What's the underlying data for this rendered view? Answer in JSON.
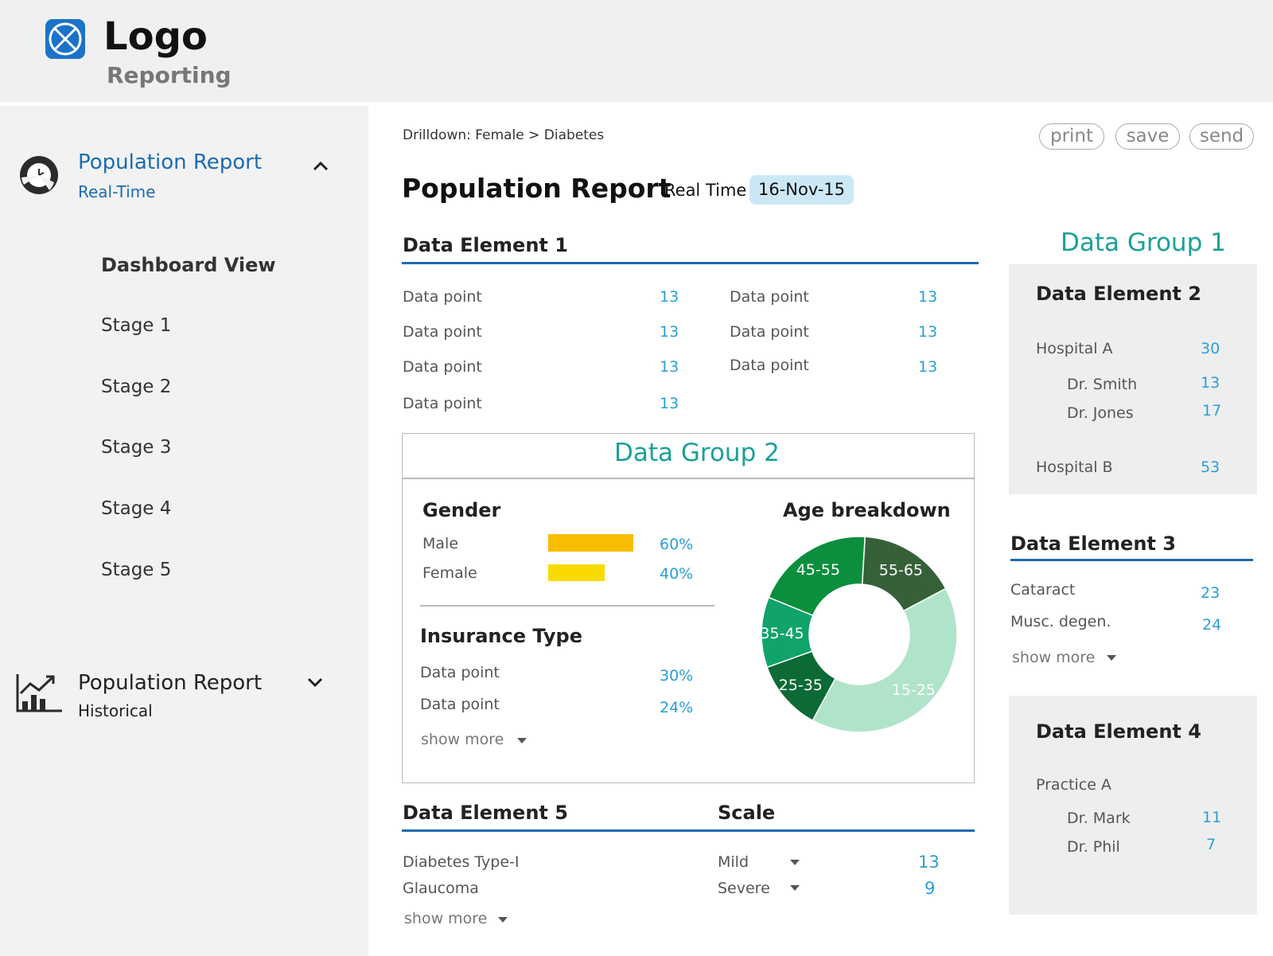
{
  "header": {
    "logo_text": "Logo",
    "logo_sub": "Reporting"
  },
  "sidebar": {
    "realtime": {
      "title": "Population Report",
      "subtitle": "Real-Time",
      "icon": "clock-pie-icon",
      "chevron": "chevron-up-icon"
    },
    "items": [
      {
        "label": "Dashboard View"
      },
      {
        "label": "Stage 1"
      },
      {
        "label": "Stage 2"
      },
      {
        "label": "Stage 3"
      },
      {
        "label": "Stage 4"
      },
      {
        "label": "Stage 5"
      }
    ],
    "historical": {
      "title": "Population Report",
      "subtitle": "Historical",
      "icon": "line-chart-icon",
      "chevron": "chevron-down-icon"
    }
  },
  "breadcrumb": {
    "label": "Drilldown",
    "path": "Female > Diabetes"
  },
  "toolbar": {
    "print": "print",
    "save": "save",
    "send": "send"
  },
  "report": {
    "title": "Population Report",
    "mode": "Real Time",
    "date": "16-Nov-15"
  },
  "element1": {
    "title": "Data Element 1",
    "left": [
      {
        "label": "Data point",
        "value": "13"
      },
      {
        "label": "Data point",
        "value": "13"
      },
      {
        "label": "Data point",
        "value": "13"
      },
      {
        "label": "Data point",
        "value": "13"
      }
    ],
    "right": [
      {
        "label": "Data point",
        "value": "13"
      },
      {
        "label": "Data point",
        "value": "13"
      },
      {
        "label": "Data point",
        "value": "13"
      }
    ]
  },
  "group2": {
    "title": "Data Group 2",
    "gender": {
      "title": "Gender",
      "rows": [
        {
          "label": "Male",
          "value": "60%",
          "fraction": 0.6,
          "color": "#f7bd00"
        },
        {
          "label": "Female",
          "value": "40%",
          "fraction": 0.4,
          "color": "#f9da00"
        }
      ]
    },
    "insurance": {
      "title": "Insurance Type",
      "rows": [
        {
          "label": "Data point",
          "value": "30%"
        },
        {
          "label": "Data point",
          "value": "24%"
        }
      ],
      "show_more": "show more"
    },
    "age": {
      "title": "Age breakdown"
    }
  },
  "chart_data": {
    "type": "pie",
    "title": "Age breakdown",
    "categories": [
      "15-25",
      "25-35",
      "35-45",
      "45-55",
      "55-65"
    ],
    "values": [
      35,
      10,
      10,
      17,
      14
    ],
    "colors": [
      "#b0e4ca",
      "#0c6a36",
      "#10a36a",
      "#0b8f3d",
      "#366138"
    ]
  },
  "element5": {
    "title": "Data Element 5",
    "scale_title": "Scale",
    "rows": [
      {
        "label": "Diabetes Type-I",
        "scale": "Mild",
        "value": "13"
      },
      {
        "label": "Glaucoma",
        "scale": "Severe",
        "value": "9"
      }
    ],
    "show_more": "show more"
  },
  "group1": {
    "title": "Data Group 1"
  },
  "element2": {
    "title": "Data Element 2",
    "rows": [
      {
        "label": "Hospital A",
        "value": "30"
      },
      {
        "label": "Dr. Smith",
        "value": "13"
      },
      {
        "label": "Dr. Jones",
        "value": "17"
      },
      {
        "label": "Hospital B",
        "value": "53"
      }
    ]
  },
  "element3": {
    "title": "Data Element 3",
    "rows": [
      {
        "label": "Cataract",
        "value": "23"
      },
      {
        "label": "Musc. degen.",
        "value": "24"
      }
    ],
    "show_more": "show more"
  },
  "element4": {
    "title": "Data Element 4",
    "rows": [
      {
        "label": "Practice A"
      },
      {
        "label": "Dr. Mark",
        "value": "11"
      },
      {
        "label": "Dr. Phil",
        "value": "7"
      }
    ]
  }
}
